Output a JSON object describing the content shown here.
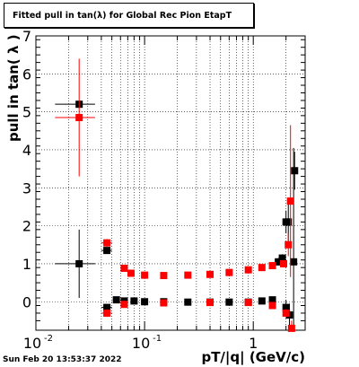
{
  "chart_data": {
    "type": "scatter",
    "title": "Fitted pull in tan(λ) for Global Rec Pion EtapT",
    "xlabel": "pT/|q| (GeV/c)",
    "ylabel": "pull in tan( λ )",
    "xscale": "log",
    "xlim": [
      0.01,
      3.0
    ],
    "ylim": [
      -0.75,
      7.0
    ],
    "grid": true,
    "legend": "none",
    "x_ticks": [
      {
        "value": 0.01,
        "label": "10",
        "sup": "-2"
      },
      {
        "value": 0.1,
        "label": "10",
        "sup": "-1"
      },
      {
        "value": 1,
        "label": "1",
        "sup": ""
      }
    ],
    "y_ticks": [
      0,
      1,
      2,
      3,
      4,
      5,
      6,
      7
    ],
    "colors": {
      "sigma": "#000000",
      "mean": "#ff0000"
    },
    "series": [
      {
        "color": "#000000",
        "marker": "square",
        "points": [
          {
            "x": 0.025,
            "y": 5.2,
            "xerr": 0.01,
            "yerr": 0.0
          },
          {
            "x": 0.025,
            "y": 1.0,
            "xerr": 0.01,
            "yerr": 0.9
          },
          {
            "x": 0.045,
            "y": 1.35,
            "xerr": 0.005,
            "yerr": 0.08
          },
          {
            "x": 0.045,
            "y": -0.15,
            "xerr": 0.005,
            "yerr": 0.08
          },
          {
            "x": 0.055,
            "y": 0.05,
            "xerr": 0.004,
            "yerr": 0.04
          },
          {
            "x": 0.065,
            "y": 0.02,
            "xerr": 0.004,
            "yerr": 0.03
          },
          {
            "x": 0.08,
            "y": 0.02,
            "xerr": 0.005,
            "yerr": 0.02
          },
          {
            "x": 0.1,
            "y": 0.0,
            "xerr": 0.005,
            "yerr": 0.02
          },
          {
            "x": 0.15,
            "y": 0.0,
            "xerr": 0.01,
            "yerr": 0.02
          },
          {
            "x": 0.25,
            "y": -0.01,
            "xerr": 0.01,
            "yerr": 0.02
          },
          {
            "x": 0.4,
            "y": -0.01,
            "xerr": 0.02,
            "yerr": 0.02
          },
          {
            "x": 0.6,
            "y": -0.01,
            "xerr": 0.02,
            "yerr": 0.02
          },
          {
            "x": 0.9,
            "y": -0.01,
            "xerr": 0.03,
            "yerr": 0.03
          },
          {
            "x": 1.2,
            "y": 0.02,
            "xerr": 0.04,
            "yerr": 0.03
          },
          {
            "x": 1.5,
            "y": 0.05,
            "xerr": 0.05,
            "yerr": 0.05
          },
          {
            "x": 1.7,
            "y": 1.05,
            "xerr": 0.05,
            "yerr": 0.1
          },
          {
            "x": 1.85,
            "y": 1.15,
            "xerr": 0.05,
            "yerr": 0.1
          },
          {
            "x": 2.0,
            "y": 2.1,
            "xerr": 0.05,
            "yerr": 0.3
          },
          {
            "x": 2.1,
            "y": 2.1,
            "xerr": 0.05,
            "yerr": 0.6
          },
          {
            "x": 2.0,
            "y": -0.15,
            "xerr": 0.05,
            "yerr": 0.2
          },
          {
            "x": 2.15,
            "y": -0.35,
            "xerr": 0.05,
            "yerr": 0.3
          },
          {
            "x": 2.35,
            "y": 1.05,
            "xerr": 0.05,
            "yerr": 3.0
          },
          {
            "x": 2.4,
            "y": 3.45,
            "xerr": 0.05,
            "yerr": 0.5
          }
        ]
      },
      {
        "color": "#ff0000",
        "marker": "square",
        "points": [
          {
            "x": 0.025,
            "y": 4.85,
            "xerr": 0.01,
            "yerr": 1.55
          },
          {
            "x": 0.045,
            "y": 1.55,
            "xerr": 0.005,
            "yerr": 0.1
          },
          {
            "x": 0.045,
            "y": -0.3,
            "xerr": 0.005,
            "yerr": 0.1
          },
          {
            "x": 0.065,
            "y": 0.88,
            "xerr": 0.004,
            "yerr": 0.05
          },
          {
            "x": 0.075,
            "y": 0.75,
            "xerr": 0.004,
            "yerr": 0.04
          },
          {
            "x": 0.065,
            "y": -0.07,
            "xerr": 0.004,
            "yerr": 0.04
          },
          {
            "x": 0.1,
            "y": 0.7,
            "xerr": 0.005,
            "yerr": 0.03
          },
          {
            "x": 0.15,
            "y": 0.69,
            "xerr": 0.01,
            "yerr": 0.03
          },
          {
            "x": 0.25,
            "y": 0.7,
            "xerr": 0.01,
            "yerr": 0.03
          },
          {
            "x": 0.4,
            "y": 0.72,
            "xerr": 0.02,
            "yerr": 0.03
          },
          {
            "x": 0.6,
            "y": 0.77,
            "xerr": 0.02,
            "yerr": 0.03
          },
          {
            "x": 0.9,
            "y": 0.84,
            "xerr": 0.03,
            "yerr": 0.04
          },
          {
            "x": 1.2,
            "y": 0.9,
            "xerr": 0.04,
            "yerr": 0.05
          },
          {
            "x": 1.5,
            "y": 0.95,
            "xerr": 0.05,
            "yerr": 0.06
          },
          {
            "x": 0.15,
            "y": -0.03,
            "xerr": 0.01,
            "yerr": 0.02
          },
          {
            "x": 0.4,
            "y": -0.02,
            "xerr": 0.02,
            "yerr": 0.02
          },
          {
            "x": 0.9,
            "y": -0.02,
            "xerr": 0.03,
            "yerr": 0.03
          },
          {
            "x": 1.5,
            "y": -0.1,
            "xerr": 0.05,
            "yerr": 0.05
          },
          {
            "x": 1.9,
            "y": 1.0,
            "xerr": 0.05,
            "yerr": 0.1
          },
          {
            "x": 2.0,
            "y": -0.3,
            "xerr": 0.05,
            "yerr": 0.1
          },
          {
            "x": 2.1,
            "y": 1.5,
            "xerr": 0.05,
            "yerr": 0.3
          },
          {
            "x": 2.2,
            "y": 2.65,
            "xerr": 0.05,
            "yerr": 2.0
          },
          {
            "x": 2.25,
            "y": -0.7,
            "xerr": 0.05,
            "yerr": 0.2
          }
        ]
      }
    ]
  },
  "timestamp": "Sun Feb 20 13:53:37 2022"
}
